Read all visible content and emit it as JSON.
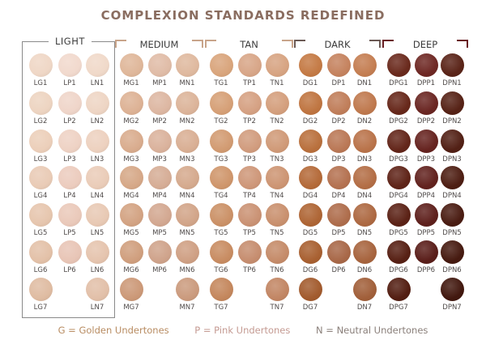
{
  "title": "COMPLEXION STANDARDS REDEFINED",
  "families": [
    {
      "name": "LIGHT",
      "columns": [
        {
          "codes": [
            "LG1",
            "LG2",
            "LG3",
            "LG4",
            "LG5",
            "LG6",
            "LG7"
          ],
          "colors": [
            "#efd7c6",
            "#edd4c1",
            "#eccfba",
            "#e9cbb6",
            "#e6c6ae",
            "#e3c1a8",
            "#dfbca2"
          ]
        },
        {
          "codes": [
            "LP1",
            "LP2",
            "LP3",
            "LP4",
            "LP5",
            "LP6"
          ],
          "colors": [
            "#f1d9cd",
            "#efd5c9",
            "#eed2c4",
            "#ecccbe",
            "#eac9ba",
            "#e8c5b6"
          ]
        },
        {
          "codes": [
            "LN1",
            "LN2",
            "LN3",
            "LN4",
            "LN5",
            "LN6",
            "LN7"
          ],
          "colors": [
            "#f0d9c9",
            "#eed5c4",
            "#edd1bf",
            "#eaccb8",
            "#e8c9b4",
            "#e5c4ae",
            "#e2c0a9"
          ]
        }
      ]
    },
    {
      "name": "MEDIUM",
      "columns": [
        {
          "codes": [
            "MG1",
            "MG2",
            "MG3",
            "MG4",
            "MG5",
            "MG6",
            "MG7"
          ],
          "colors": [
            "#dfb79a",
            "#ddb295",
            "#d9ac8e",
            "#d6a888",
            "#d3a383",
            "#d09f7e",
            "#cc9978"
          ]
        },
        {
          "codes": [
            "MP1",
            "MP2",
            "MP3",
            "MP4",
            "MP5",
            "MP6"
          ],
          "colors": [
            "#e0bca7",
            "#ddb7a2",
            "#dab29c",
            "#d6ad96",
            "#d3a891",
            "#cfa38b"
          ]
        },
        {
          "codes": [
            "MN1",
            "MN2",
            "MN3",
            "MN4",
            "MN5",
            "MN6",
            "MN7"
          ],
          "colors": [
            "#dfb99f",
            "#dcb49a",
            "#d9af94",
            "#d5aa8e",
            "#d2a589",
            "#cfa084",
            "#cb9b7e"
          ]
        }
      ]
    },
    {
      "name": "TAN",
      "columns": [
        {
          "codes": [
            "TG1",
            "TG2",
            "TG3",
            "TG4",
            "TG5",
            "TG6",
            "TG7"
          ],
          "colors": [
            "#d9a57c",
            "#d6a077",
            "#d29b72",
            "#cf966c",
            "#cb9167",
            "#c88c62",
            "#c4875d"
          ]
        },
        {
          "codes": [
            "TP1",
            "TP2",
            "TP3",
            "TP4",
            "TP5",
            "TP6"
          ],
          "colors": [
            "#d8a688",
            "#d5a183",
            "#d19c7e",
            "#ce9779",
            "#ca9274",
            "#c68d6f"
          ]
        },
        {
          "codes": [
            "TN1",
            "TN2",
            "TN3",
            "TN4",
            "TN5",
            "TN6",
            "TN7"
          ],
          "colors": [
            "#d7a482",
            "#d49f7d",
            "#d09a78",
            "#cd9573",
            "#c9906e",
            "#c58b69",
            "#c28664"
          ]
        }
      ]
    },
    {
      "name": "DARK",
      "columns": [
        {
          "codes": [
            "DG1",
            "DG2",
            "DG3",
            "DG4",
            "DG5",
            "DG6",
            "DG7"
          ],
          "colors": [
            "#c47a45",
            "#bf7541",
            "#b9703d",
            "#b46a39",
            "#ae6535",
            "#a86031",
            "#a25b2e"
          ]
        },
        {
          "codes": [
            "DP1",
            "DP2",
            "DP3",
            "DP4",
            "DP5",
            "DP6"
          ],
          "colors": [
            "#c5835f",
            "#c07e5a",
            "#ba7856",
            "#b47251",
            "#ae6d4c",
            "#a86848"
          ]
        },
        {
          "codes": [
            "DN1",
            "DN2",
            "DN3",
            "DN4",
            "DN5",
            "DN6",
            "DN7"
          ],
          "colors": [
            "#c47e52",
            "#bf794e",
            "#b9734a",
            "#b36e46",
            "#ad6942",
            "#a7643e",
            "#a15f3a"
          ]
        }
      ]
    },
    {
      "name": "DEEP",
      "columns": [
        {
          "codes": [
            "DPG1",
            "DPG2",
            "DPG3",
            "DPG4",
            "DPG5",
            "DPG6",
            "DPG7"
          ],
          "colors": [
            "#6a2a1d",
            "#67281b",
            "#63261a",
            "#5f2418",
            "#5b2216",
            "#572014",
            "#531e12"
          ]
        },
        {
          "codes": [
            "DPP1",
            "DPP2",
            "DPP3",
            "DPP4",
            "DPP5",
            "DPP6"
          ],
          "colors": [
            "#6e2824",
            "#6a2622",
            "#662420",
            "#62221e",
            "#5e201c",
            "#5a1e1a"
          ]
        },
        {
          "codes": [
            "DPN1",
            "DPN2",
            "DPN3",
            "DPN4",
            "DPN5",
            "DPN6",
            "DPN7"
          ],
          "colors": [
            "#5a2418",
            "#562216",
            "#522015",
            "#4e1e13",
            "#4a1c12",
            "#461a10",
            "#42180f"
          ]
        }
      ]
    }
  ],
  "legend": {
    "golden": "G = Golden Undertones",
    "pink": "P = Pink Undertones",
    "neutral": "N = Neutral Undertones"
  },
  "colors": {
    "title": "#8a6d60",
    "golden": "#b88c62",
    "pink": "#c49a92",
    "neutral": "#8a7f7a"
  }
}
